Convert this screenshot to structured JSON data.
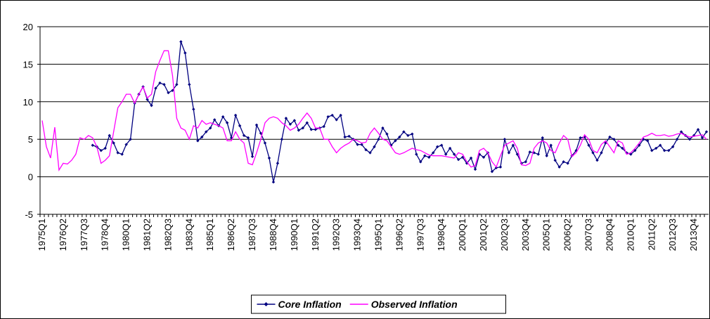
{
  "chart_data": {
    "type": "line",
    "categories": [
      "1975Q1",
      null,
      null,
      null,
      null,
      "1976Q2",
      null,
      null,
      null,
      null,
      "1977Q3",
      null,
      null,
      null,
      null,
      "1978Q4",
      null,
      null,
      null,
      null,
      "1980Q1",
      null,
      null,
      null,
      null,
      "1981Q2",
      null,
      null,
      null,
      null,
      "1982Q3",
      null,
      null,
      null,
      null,
      "1983Q4",
      null,
      null,
      null,
      null,
      "1985Q1",
      null,
      null,
      null,
      null,
      "1986Q2",
      null,
      null,
      null,
      null,
      "1987Q3",
      null,
      null,
      null,
      null,
      "1988Q4",
      null,
      null,
      null,
      null,
      "1990Q1",
      null,
      null,
      null,
      null,
      "1991Q2",
      null,
      null,
      null,
      null,
      "1992Q3",
      null,
      null,
      null,
      null,
      "1993Q4",
      null,
      null,
      null,
      null,
      "1995Q1",
      null,
      null,
      null,
      null,
      "1996Q2",
      null,
      null,
      null,
      null,
      "1997Q3",
      null,
      null,
      null,
      null,
      "1998Q4",
      null,
      null,
      null,
      null,
      "2000Q1",
      null,
      null,
      null,
      null,
      "2001Q2",
      null,
      null,
      null,
      null,
      "2002Q3",
      null,
      null,
      null,
      null,
      "2003Q4",
      null,
      null,
      null,
      null,
      "2005Q1",
      null,
      null,
      null,
      null,
      "2006Q2",
      null,
      null,
      null,
      null,
      "2007Q3",
      null,
      null,
      null,
      null,
      "2008Q4",
      null,
      null,
      null,
      null,
      "2010Q1",
      null,
      null,
      null,
      null,
      "2011Q2",
      null,
      null,
      null,
      null,
      "2012Q3",
      null,
      null,
      null,
      null,
      "2013Q4",
      null,
      null,
      null
    ],
    "series": [
      {
        "name": "Core Inflation",
        "color": "#000080",
        "marker": "diamond",
        "values": [
          null,
          null,
          null,
          null,
          null,
          null,
          null,
          null,
          null,
          null,
          null,
          null,
          4.2,
          4,
          3.5,
          3.8,
          5.5,
          4.5,
          3.2,
          3,
          4.3,
          5,
          9.8,
          11,
          12,
          10.3,
          9.5,
          11.8,
          12.5,
          12.3,
          11.2,
          11.5,
          12.3,
          18,
          16.5,
          12.3,
          9,
          4.8,
          5.3,
          6,
          6.5,
          7.6,
          6.8,
          8,
          7.2,
          5.2,
          8.2,
          6.8,
          5.5,
          5.2,
          2.7,
          6.9,
          5.8,
          4.5,
          2.5,
          -0.7,
          1.8,
          5,
          7.8,
          7,
          7.5,
          6.2,
          6.5,
          7.2,
          6.3,
          6.3,
          6.5,
          6.7,
          8,
          8.2,
          7.6,
          8.2,
          5.3,
          5.4,
          5,
          4.3,
          4.3,
          3.6,
          3.2,
          4,
          5,
          6.5,
          5.7,
          4.2,
          4.8,
          5.3,
          6,
          5.5,
          5.7,
          3,
          2,
          2.8,
          2.6,
          3.2,
          4,
          4.2,
          3,
          3.8,
          3,
          2.3,
          2.6,
          1.8,
          2.5,
          1,
          3,
          2.6,
          3.2,
          0.7,
          1.2,
          1.3,
          5,
          3.2,
          4.2,
          3,
          1.8,
          2,
          3.3,
          3.2,
          3,
          5.2,
          2.8,
          4.2,
          2.2,
          1.3,
          2,
          1.8,
          2.8,
          3.5,
          5.2,
          5.3,
          4.2,
          3.2,
          2.2,
          3.2,
          4.5,
          5.3,
          5,
          4.2,
          3.8,
          3.2,
          3,
          3.5,
          4.2,
          5,
          4.8,
          3.5,
          3.8,
          4.2,
          3.5,
          3.5,
          4,
          5,
          6,
          5.5,
          5,
          5.5,
          6.3,
          5.2,
          6
        ]
      },
      {
        "name": "Observed Inflation",
        "color": "#ff00ff",
        "values": [
          7.5,
          4,
          2.5,
          6.6,
          0.9,
          1.8,
          1.7,
          2.2,
          3,
          5.2,
          5,
          5.5,
          5.2,
          4,
          1.8,
          2.2,
          2.8,
          6,
          9.2,
          10,
          11,
          11,
          9.8,
          11,
          12,
          10.5,
          11,
          14,
          15.5,
          16.8,
          16.8,
          13.5,
          7.8,
          6.5,
          6.2,
          5,
          6.8,
          6.5,
          7.5,
          7,
          7.2,
          7,
          6.8,
          6.5,
          4.8,
          4.8,
          6,
          5,
          4.5,
          1.8,
          1.6,
          3.2,
          5,
          7.2,
          7.8,
          8,
          7.8,
          7.2,
          6.8,
          6.2,
          6.5,
          7,
          7.8,
          8.5,
          7.8,
          6.5,
          6.5,
          5,
          5,
          4,
          3.2,
          3.8,
          4.2,
          4.5,
          5,
          4.8,
          4.5,
          4.6,
          5.8,
          6.5,
          5.8,
          5,
          4.8,
          4,
          3.2,
          3,
          3.2,
          3.5,
          3.8,
          3.6,
          3.5,
          3.2,
          2.9,
          2.8,
          2.8,
          2.8,
          2.7,
          2.6,
          2.5,
          3.2,
          3,
          2,
          1.3,
          1.5,
          3.5,
          3.8,
          3.2,
          2,
          1.3,
          2.8,
          4.2,
          4.5,
          4.8,
          3.8,
          1.6,
          1.5,
          1.8,
          3.8,
          4.5,
          4.8,
          4.5,
          3.5,
          3.2,
          4.5,
          5.5,
          5,
          2.7,
          3.2,
          4.2,
          5.6,
          5,
          3.5,
          3.2,
          4.3,
          4.8,
          4,
          3.2,
          4.8,
          4.5,
          3,
          3.2,
          3.8,
          4.5,
          5.3,
          5.5,
          5.8,
          5.5,
          5.5,
          5.6,
          5.4,
          5.5,
          5.7,
          5.8,
          5.5,
          5.3,
          5.4,
          5.5,
          5.6,
          5
        ]
      }
    ],
    "ylim": [
      -5,
      20
    ],
    "yticks": [
      -5,
      0,
      5,
      10,
      15,
      20
    ],
    "grid": true,
    "legend": "bottom"
  }
}
